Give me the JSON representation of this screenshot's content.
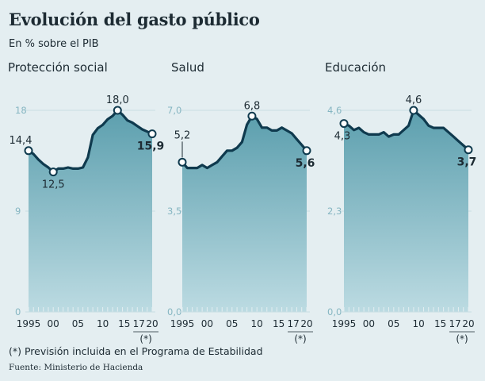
{
  "header": {
    "title": "Evolución del gasto público",
    "subtitle": "En % sobre el PIB"
  },
  "footer": {
    "note": "(*) Previsión incluida en el Programa de Estabilidad",
    "source": "Fuente: Ministerio de Hacienda"
  },
  "colors": {
    "line": "#0f3a4e",
    "area_top": "#5c9fae",
    "area_bottom": "#bcdbe2",
    "grid": "#c9dde3",
    "background": "#e4eef1"
  },
  "chart_data": [
    {
      "type": "area",
      "title": "Protección social",
      "x": [
        1995,
        1996,
        1997,
        1998,
        1999,
        2000,
        2001,
        2002,
        2003,
        2004,
        2005,
        2006,
        2007,
        2008,
        2009,
        2010,
        2011,
        2012,
        2013,
        2014,
        2015,
        2016,
        2017,
        2018,
        2019,
        2020
      ],
      "values": [
        14.4,
        14.1,
        13.6,
        13.2,
        12.9,
        12.5,
        12.8,
        12.8,
        12.9,
        12.8,
        12.8,
        12.9,
        13.8,
        15.8,
        16.4,
        16.7,
        17.2,
        17.5,
        18.0,
        17.6,
        17.1,
        16.9,
        16.6,
        16.3,
        16.1,
        15.9
      ],
      "ylim": [
        0,
        18
      ],
      "yticks": [
        "0",
        "9",
        "18"
      ],
      "ytick_values": [
        0,
        9,
        18
      ],
      "xtick_labels": [
        "1995",
        "00",
        "05",
        "10",
        "15",
        "17",
        "20"
      ],
      "xtick_years": [
        1995,
        2000,
        2005,
        2010,
        2015,
        2017,
        2020
      ],
      "forecast_mark": "(*)",
      "annotations": [
        {
          "year": 1995,
          "label": "14,4",
          "pos": "above"
        },
        {
          "year": 2000,
          "label": "12,5",
          "pos": "below"
        },
        {
          "year": 2013,
          "label": "18,0",
          "pos": "above"
        },
        {
          "year": 2020,
          "label": "15,9",
          "pos": "below",
          "bold": true
        }
      ]
    },
    {
      "type": "area",
      "title": "Salud",
      "x": [
        1995,
        1996,
        1997,
        1998,
        1999,
        2000,
        2001,
        2002,
        2003,
        2004,
        2005,
        2006,
        2007,
        2008,
        2009,
        2010,
        2011,
        2012,
        2013,
        2014,
        2015,
        2016,
        2017,
        2018,
        2019,
        2020
      ],
      "values": [
        5.2,
        5.0,
        5.0,
        5.0,
        5.1,
        5.0,
        5.1,
        5.2,
        5.4,
        5.6,
        5.6,
        5.7,
        5.9,
        6.5,
        6.8,
        6.7,
        6.4,
        6.4,
        6.3,
        6.3,
        6.4,
        6.3,
        6.2,
        6.0,
        5.8,
        5.6
      ],
      "ylim": [
        0,
        7.0
      ],
      "yticks": [
        "0,0",
        "3,5",
        "7,0"
      ],
      "ytick_values": [
        0,
        3.5,
        7.0
      ],
      "xtick_labels": [
        "1995",
        "00",
        "05",
        "10",
        "15",
        "17",
        "20"
      ],
      "xtick_years": [
        1995,
        2000,
        2005,
        2010,
        2015,
        2017,
        2020
      ],
      "forecast_mark": "(*)",
      "annotations": [
        {
          "year": 1995,
          "label": "5,2",
          "pos": "above-leader"
        },
        {
          "year": 2009,
          "label": "6,8",
          "pos": "above"
        },
        {
          "year": 2020,
          "label": "5,6",
          "pos": "below",
          "bold": true
        }
      ]
    },
    {
      "type": "area",
      "title": "Educación",
      "x": [
        1995,
        1996,
        1997,
        1998,
        1999,
        2000,
        2001,
        2002,
        2003,
        2004,
        2005,
        2006,
        2007,
        2008,
        2009,
        2010,
        2011,
        2012,
        2013,
        2014,
        2015,
        2016,
        2017,
        2018,
        2019,
        2020
      ],
      "values": [
        4.3,
        4.25,
        4.15,
        4.2,
        4.1,
        4.05,
        4.05,
        4.05,
        4.1,
        4.0,
        4.05,
        4.05,
        4.15,
        4.25,
        4.6,
        4.5,
        4.4,
        4.25,
        4.2,
        4.2,
        4.2,
        4.1,
        4.0,
        3.9,
        3.8,
        3.7
      ],
      "ylim": [
        0,
        4.6
      ],
      "yticks": [
        "0,0",
        "2,3",
        "4,6"
      ],
      "ytick_values": [
        0,
        2.3,
        4.6
      ],
      "xtick_labels": [
        "1995",
        "00",
        "05",
        "10",
        "15",
        "17",
        "20"
      ],
      "xtick_years": [
        1995,
        2000,
        2005,
        2010,
        2015,
        2017,
        2020
      ],
      "forecast_mark": "(*)",
      "annotations": [
        {
          "year": 1995,
          "label": "4,3",
          "pos": "below"
        },
        {
          "year": 2009,
          "label": "4,6",
          "pos": "above"
        },
        {
          "year": 2020,
          "label": "3,7",
          "pos": "below",
          "bold": true
        }
      ]
    }
  ]
}
